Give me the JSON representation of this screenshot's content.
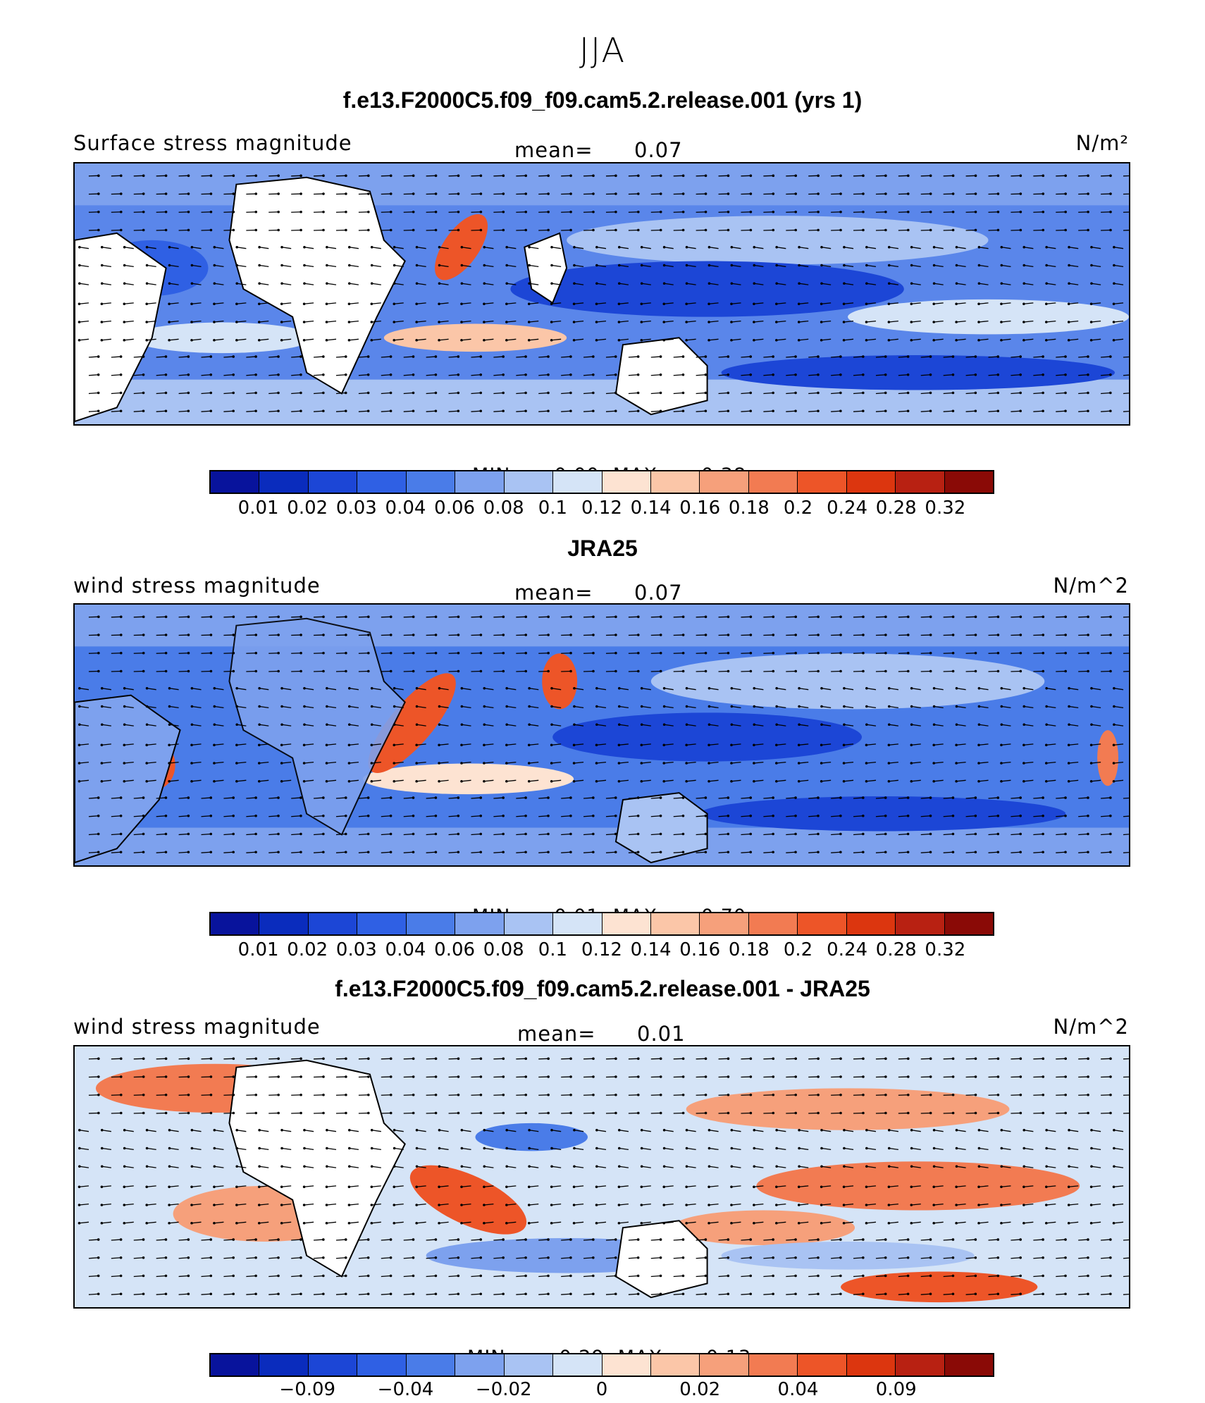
{
  "figure": {
    "season": "JJA",
    "colors": [
      "#08139c",
      "#0a2cbd",
      "#1c46d6",
      "#2f60e4",
      "#4a7ce8",
      "#7da1ee",
      "#a9c3f3",
      "#d5e4f7",
      "#fde3d2",
      "#fbc6a8",
      "#f6a07b",
      "#f27b52",
      "#ed5528",
      "#dc360f",
      "#b82112",
      "#8a0a06"
    ]
  },
  "panels": [
    {
      "title": "f.e13.F2000C5.f09_f09.cam5.2.release.001 (yrs 1)",
      "left_label": "Surface stress magnitude",
      "mean_label": "mean=",
      "mean_value": "0.07",
      "units": "N/m²",
      "min_label": "MIN =",
      "min_value": "0.00",
      "max_label": "MAX =",
      "max_value": "0.38",
      "ticks": [
        "0.01",
        "0.02",
        "0.03",
        "0.04",
        "0.06",
        "0.08",
        "0.1",
        "0.12",
        "0.14",
        "0.16",
        "0.18",
        "0.2",
        "0.24",
        "0.28",
        "0.32"
      ]
    },
    {
      "title": "JRA25",
      "left_label": "wind stress magnitude",
      "mean_label": "mean=",
      "mean_value": "0.07",
      "units": "N/m^2",
      "min_label": "MIN =",
      "min_value": "0.01",
      "max_label": "MAX =",
      "max_value": "0.70",
      "ticks": [
        "0.01",
        "0.02",
        "0.03",
        "0.04",
        "0.06",
        "0.08",
        "0.1",
        "0.12",
        "0.14",
        "0.16",
        "0.18",
        "0.2",
        "0.24",
        "0.28",
        "0.32"
      ]
    },
    {
      "title": "f.e13.F2000C5.f09_f09.cam5.2.release.001 - JRA25",
      "left_label": "wind stress magnitude",
      "mean_label": "mean=",
      "mean_value": "0.01",
      "units": "N/m^2",
      "min_label": "MIN =",
      "min_value": "−0.29",
      "max_label": "MAX =",
      "max_value": "0.13",
      "ticks": [
        "−0.09",
        "−0.04",
        "−0.02",
        "0",
        "0.02",
        "0.04",
        "0.09"
      ]
    }
  ],
  "chart_data": [
    {
      "type": "heatmap",
      "title": "f.e13.F2000C5.f09_f09.cam5.2.release.001 (yrs 1)",
      "variable": "Surface stress magnitude",
      "units": "N/m²",
      "mean": 0.07,
      "min": 0.0,
      "max": 0.38,
      "colorbar_levels": [
        0.01,
        0.02,
        0.03,
        0.04,
        0.06,
        0.08,
        0.1,
        0.12,
        0.14,
        0.16,
        0.18,
        0.2,
        0.24,
        0.28,
        0.32
      ],
      "overlay": "wind stress vectors"
    },
    {
      "type": "heatmap",
      "title": "JRA25",
      "variable": "wind stress magnitude",
      "units": "N/m^2",
      "mean": 0.07,
      "min": 0.01,
      "max": 0.7,
      "colorbar_levels": [
        0.01,
        0.02,
        0.03,
        0.04,
        0.06,
        0.08,
        0.1,
        0.12,
        0.14,
        0.16,
        0.18,
        0.2,
        0.24,
        0.28,
        0.32
      ],
      "overlay": "wind stress vectors"
    },
    {
      "type": "heatmap",
      "title": "f.e13.F2000C5.f09_f09.cam5.2.release.001 - JRA25",
      "variable": "wind stress magnitude",
      "units": "N/m^2",
      "mean": 0.01,
      "min": -0.29,
      "max": 0.13,
      "colorbar_levels": [
        -0.09,
        -0.04,
        -0.02,
        0,
        0.02,
        0.04,
        0.09
      ],
      "overlay": "wind stress difference vectors"
    }
  ]
}
